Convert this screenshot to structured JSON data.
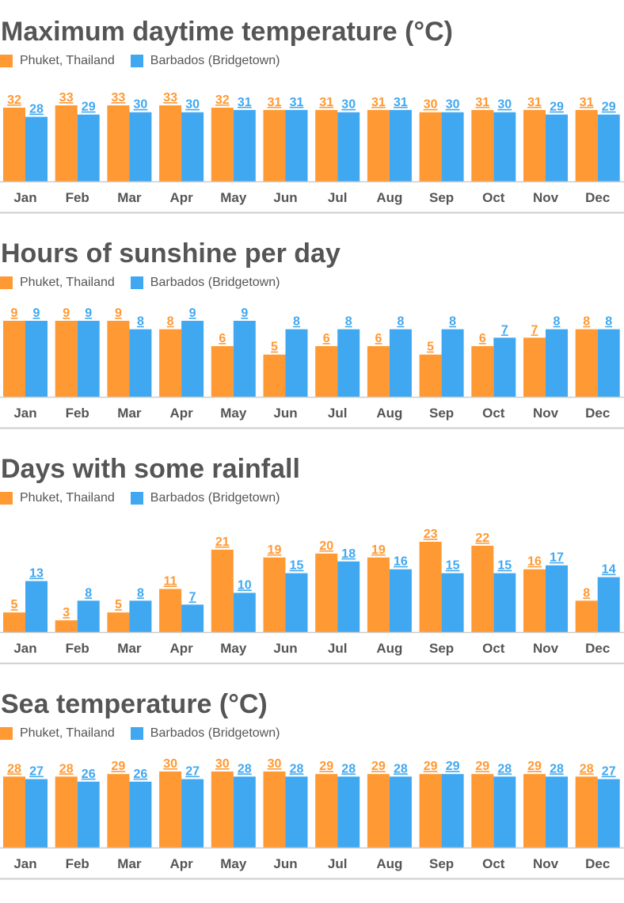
{
  "legend": {
    "series1": "Phuket, Thailand",
    "series2": "Barbados (Bridgetown)"
  },
  "colors": {
    "series1": "#ff9933",
    "series2": "#40a8f0",
    "axis": "#cccccc"
  },
  "chart_data": [
    {
      "type": "bar",
      "title": "Maximum daytime temperature (°C)",
      "categories": [
        "Jan",
        "Feb",
        "Mar",
        "Apr",
        "May",
        "Jun",
        "Jul",
        "Aug",
        "Sep",
        "Oct",
        "Nov",
        "Dec"
      ],
      "series": [
        {
          "name": "Phuket, Thailand",
          "values": [
            32,
            33,
            33,
            33,
            32,
            31,
            31,
            31,
            30,
            31,
            31,
            31
          ]
        },
        {
          "name": "Barbados (Bridgetown)",
          "values": [
            28,
            29,
            30,
            30,
            31,
            31,
            30,
            31,
            30,
            30,
            29,
            29
          ]
        }
      ],
      "ylim": [
        0,
        33
      ]
    },
    {
      "type": "bar",
      "title": "Hours of sunshine per day",
      "categories": [
        "Jan",
        "Feb",
        "Mar",
        "Apr",
        "May",
        "Jun",
        "Jul",
        "Aug",
        "Sep",
        "Oct",
        "Nov",
        "Dec"
      ],
      "series": [
        {
          "name": "Phuket, Thailand",
          "values": [
            9,
            9,
            9,
            8,
            6,
            5,
            6,
            6,
            5,
            6,
            7,
            8
          ]
        },
        {
          "name": "Barbados (Bridgetown)",
          "values": [
            9,
            9,
            8,
            9,
            9,
            8,
            8,
            8,
            8,
            7,
            8,
            8
          ]
        }
      ],
      "ylim": [
        0,
        9
      ]
    },
    {
      "type": "bar",
      "title": "Days with some rainfall",
      "categories": [
        "Jan",
        "Feb",
        "Mar",
        "Apr",
        "May",
        "Jun",
        "Jul",
        "Aug",
        "Sep",
        "Oct",
        "Nov",
        "Dec"
      ],
      "series": [
        {
          "name": "Phuket, Thailand",
          "values": [
            5,
            3,
            5,
            11,
            21,
            19,
            20,
            19,
            23,
            22,
            16,
            8
          ]
        },
        {
          "name": "Barbados (Bridgetown)",
          "values": [
            13,
            8,
            8,
            7,
            10,
            15,
            18,
            16,
            15,
            15,
            17,
            14
          ]
        }
      ],
      "ylim": [
        0,
        23
      ]
    },
    {
      "type": "bar",
      "title": "Sea temperature (°C)",
      "categories": [
        "Jan",
        "Feb",
        "Mar",
        "Apr",
        "May",
        "Jun",
        "Jul",
        "Aug",
        "Sep",
        "Oct",
        "Nov",
        "Dec"
      ],
      "series": [
        {
          "name": "Phuket, Thailand",
          "values": [
            28,
            28,
            29,
            30,
            30,
            30,
            29,
            29,
            29,
            29,
            29,
            28
          ]
        },
        {
          "name": "Barbados (Bridgetown)",
          "values": [
            27,
            26,
            26,
            27,
            28,
            28,
            28,
            28,
            29,
            28,
            28,
            27
          ]
        }
      ],
      "ylim": [
        0,
        30
      ]
    }
  ]
}
